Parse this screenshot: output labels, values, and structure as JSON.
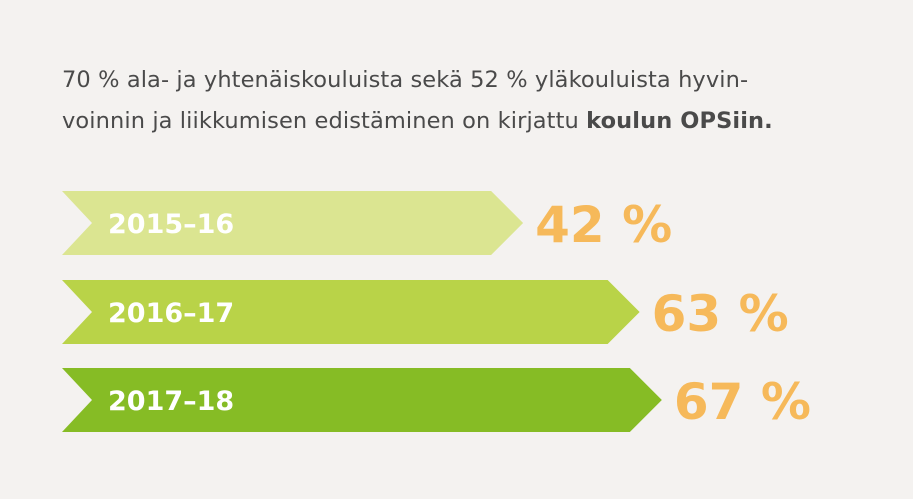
{
  "headline": {
    "line1": "70 % ala- ja yhtenäiskouluista sekä 52 % yläkouluista hyvin-",
    "line2_plain": "voinnin ja liikkumisen edistäminen on kirjattu ",
    "line2_bold": "koulun OPSiin."
  },
  "chart_data": {
    "type": "bar",
    "orientation": "horizontal",
    "categories": [
      "2015–16",
      "2016–17",
      "2017–18"
    ],
    "values": [
      42,
      63,
      67
    ],
    "value_labels": [
      "42 %",
      "63 %",
      "67 %"
    ],
    "unit": "%",
    "colors": [
      "#dbe591",
      "#b9d348",
      "#86bc25"
    ],
    "value_color": "#f6b95a",
    "grid": false,
    "legend": "none"
  }
}
